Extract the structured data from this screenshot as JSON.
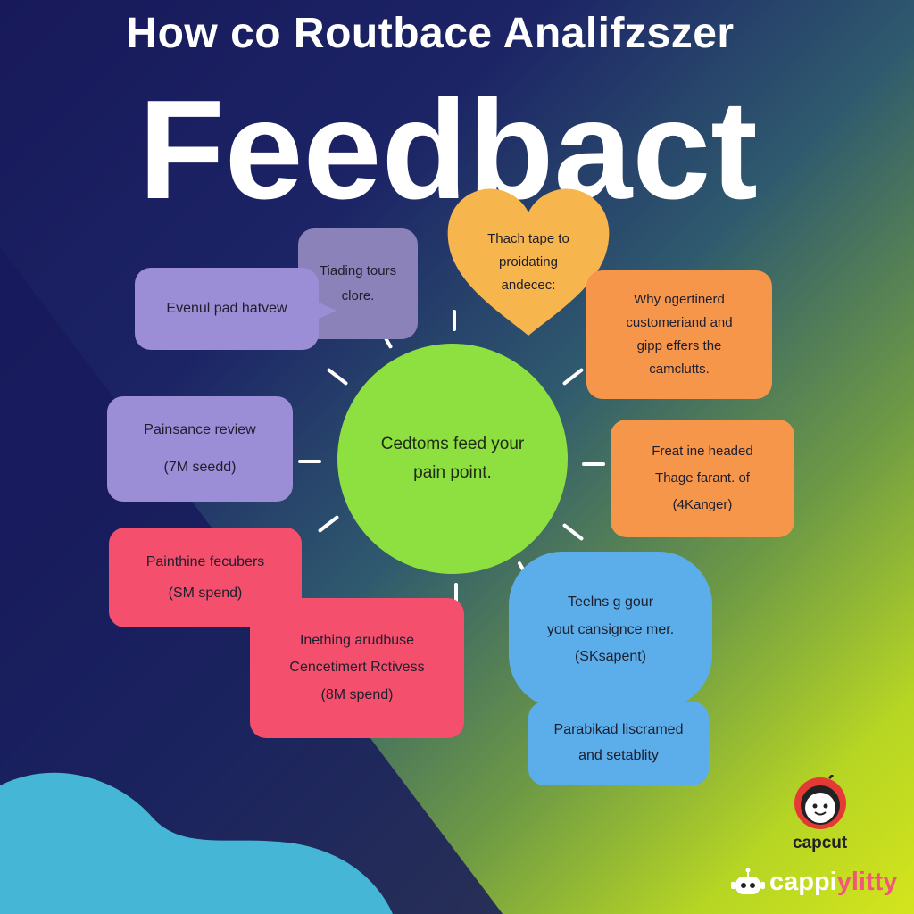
{
  "header": {
    "subtitle": "How co Routbace Analifzszer",
    "title": "Feedbact"
  },
  "hub": {
    "line1": "Cedtoms feed your",
    "line2": "pain point."
  },
  "nodes": {
    "eventual": {
      "line1": "Evenul pad hatvew"
    },
    "trading": {
      "line1": "Tiading tours",
      "line2": "clore."
    },
    "heart": {
      "line1": "Thach tape to",
      "line2": "proidating",
      "line3": "andecec:"
    },
    "why": {
      "line1": "Why ogertinerd",
      "line2": "customeriand and",
      "line3": "gipp effers the",
      "line4": "camclutts."
    },
    "painsance": {
      "line1": "Painsance review",
      "line2": "(7M seedd)"
    },
    "freat": {
      "line1": "Freat ine headed",
      "line2": "Thage farant. of",
      "line3": "(4Kanger)"
    },
    "painthine": {
      "line1": "Painthine fecubers",
      "line2": "(SM spend)"
    },
    "inething": {
      "line1": "Inething arudbuse",
      "line2": "Cencetimert Rctivess",
      "line3": "(8M spend)"
    },
    "teelns": {
      "line1": "Teelns g gour",
      "line2": "yout cansignce mer.",
      "line3": "(SKsapent)"
    },
    "parabikad": {
      "line1": "Parabikad liscramed",
      "line2": "and setablity"
    }
  },
  "branding": {
    "logo1": "capcut",
    "logo2_main": "cappi",
    "logo2_accent": "ylitty"
  },
  "colors": {
    "purple": "#9b8ed6",
    "orange": "#f6964a",
    "pink": "#f4506e",
    "blue": "#5caeea",
    "green": "#8de040",
    "yellow": "#f7b54e"
  }
}
